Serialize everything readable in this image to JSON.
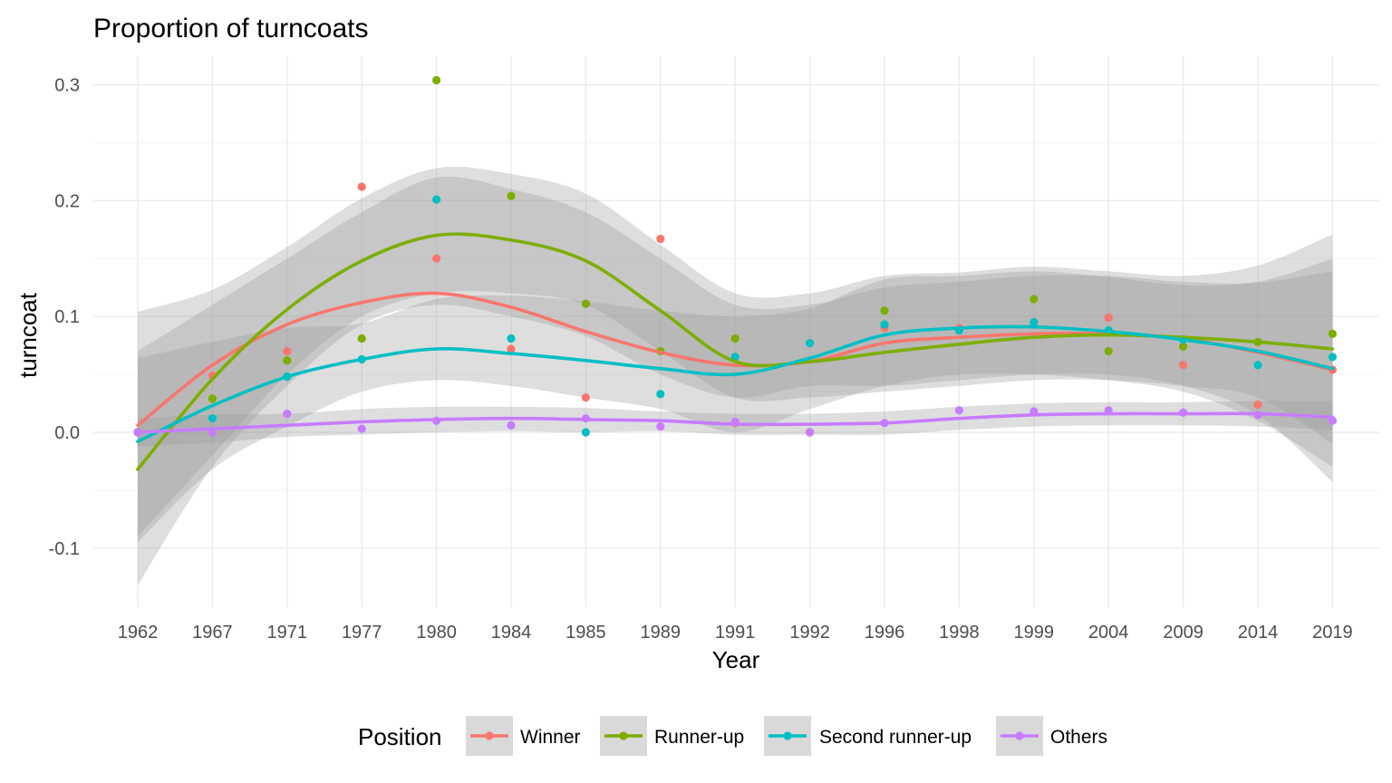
{
  "chart_data": {
    "type": "line",
    "title": "Proportion of  turncoats",
    "xlabel": "Year",
    "ylabel": "turncoat",
    "categories": [
      "1962",
      "1967",
      "1971",
      "1977",
      "1980",
      "1984",
      "1985",
      "1989",
      "1991",
      "1992",
      "1996",
      "1998",
      "1999",
      "2004",
      "2009",
      "2014",
      "2019"
    ],
    "y_ticks": [
      -0.1,
      0.0,
      0.1,
      0.2,
      0.3
    ],
    "y_tick_labels": [
      "-0.1",
      "0.0",
      "0.1",
      "0.2",
      "0.3"
    ],
    "ylim": [
      -0.15,
      0.32
    ],
    "grid": true,
    "legend": {
      "title": "Position",
      "placement": "bottom"
    },
    "series": [
      {
        "name": "Winner",
        "color": "#F8766D",
        "points": [
          0.0,
          0.049,
          0.07,
          0.212,
          0.15,
          0.072,
          0.03,
          0.167,
          0.008,
          0.0,
          0.09,
          0.09,
          0.094,
          0.099,
          0.058,
          0.024,
          0.054
        ],
        "smooth": [
          0.006,
          0.058,
          0.093,
          0.112,
          0.12,
          0.108,
          0.087,
          0.069,
          0.058,
          0.061,
          0.077,
          0.082,
          0.085,
          0.085,
          0.081,
          0.069,
          0.054
        ],
        "band_lower": [
          -0.132,
          -0.03,
          0.04,
          0.093,
          0.11,
          0.1,
          0.083,
          0.05,
          0.03,
          0.04,
          0.04,
          0.045,
          0.05,
          0.05,
          0.04,
          0.015,
          -0.043
        ],
        "band_upper": [
          0.104,
          0.123,
          0.16,
          0.202,
          0.228,
          0.223,
          0.206,
          0.162,
          0.12,
          0.12,
          0.135,
          0.138,
          0.143,
          0.139,
          0.135,
          0.144,
          0.171
        ]
      },
      {
        "name": "Runner-up",
        "color": "#7CAE00",
        "points": [
          0.0,
          0.029,
          0.062,
          0.081,
          0.304,
          0.204,
          0.111,
          0.07,
          0.081,
          0.0,
          0.105,
          0.088,
          0.115,
          0.07,
          0.074,
          0.078,
          0.085
        ],
        "smooth": [
          -0.032,
          0.046,
          0.106,
          0.148,
          0.17,
          0.166,
          0.148,
          0.105,
          0.061,
          0.061,
          0.069,
          0.076,
          0.082,
          0.084,
          0.082,
          0.078,
          0.072
        ],
        "band_lower": [
          -0.09,
          -0.02,
          0.05,
          0.1,
          0.12,
          0.12,
          0.11,
          0.07,
          0.03,
          0.03,
          0.035,
          0.04,
          0.045,
          0.045,
          0.04,
          0.03,
          -0.01
        ],
        "band_upper": [
          0.07,
          0.11,
          0.15,
          0.19,
          0.22,
          0.21,
          0.19,
          0.15,
          0.11,
          0.11,
          0.125,
          0.13,
          0.135,
          0.135,
          0.13,
          0.13,
          0.15
        ]
      },
      {
        "name": "Second runner-up",
        "color": "#00BFC4",
        "points": [
          0.0,
          0.012,
          0.048,
          0.063,
          0.201,
          0.081,
          0.0,
          0.033,
          0.065,
          0.077,
          0.093,
          0.088,
          0.095,
          0.088,
          0.08,
          0.058,
          0.065
        ],
        "smooth": [
          -0.008,
          0.023,
          0.048,
          0.063,
          0.072,
          0.068,
          0.062,
          0.055,
          0.05,
          0.064,
          0.084,
          0.09,
          0.091,
          0.087,
          0.08,
          0.07,
          0.055
        ],
        "band_lower": [
          -0.095,
          -0.032,
          0.005,
          0.035,
          0.045,
          0.04,
          0.03,
          0.02,
          0.0,
          0.02,
          0.04,
          0.05,
          0.05,
          0.045,
          0.035,
          0.01,
          -0.03
        ],
        "band_upper": [
          0.064,
          0.078,
          0.09,
          0.094,
          0.115,
          0.118,
          0.113,
          0.105,
          0.1,
          0.107,
          0.132,
          0.135,
          0.139,
          0.134,
          0.127,
          0.129,
          0.139
        ]
      },
      {
        "name": "Others",
        "color": "#C77CFF",
        "points": [
          0.0,
          0.0,
          0.016,
          0.003,
          0.01,
          0.006,
          0.012,
          0.005,
          0.009,
          0.0,
          0.008,
          0.019,
          0.018,
          0.019,
          0.017,
          0.015,
          0.01
        ],
        "smooth": [
          0.0,
          0.003,
          0.006,
          0.009,
          0.011,
          0.012,
          0.011,
          0.01,
          0.007,
          0.007,
          0.008,
          0.012,
          0.015,
          0.016,
          0.016,
          0.016,
          0.013
        ],
        "band_lower": [
          -0.012,
          -0.009,
          -0.004,
          -0.002,
          0.0,
          0.001,
          0.0,
          0.001,
          -0.002,
          -0.002,
          -0.002,
          0.002,
          0.005,
          0.006,
          0.006,
          0.005,
          0.002
        ],
        "band_upper": [
          0.012,
          0.015,
          0.016,
          0.02,
          0.022,
          0.022,
          0.021,
          0.018,
          0.016,
          0.016,
          0.018,
          0.022,
          0.025,
          0.026,
          0.026,
          0.027,
          0.027
        ]
      }
    ]
  }
}
